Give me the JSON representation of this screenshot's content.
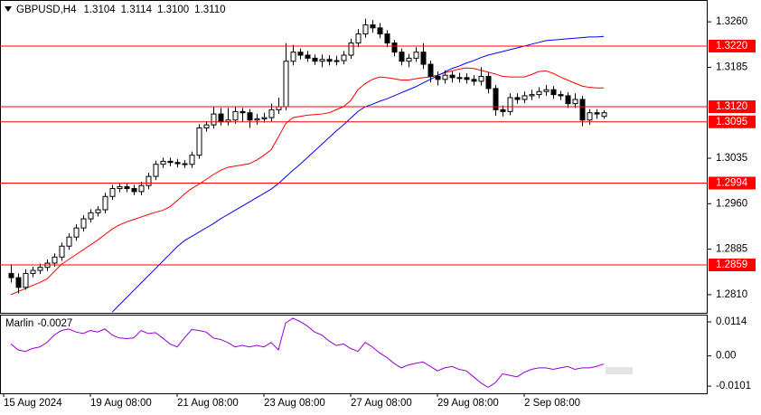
{
  "chart_data": {
    "type": "candlestick",
    "symbol": "GBPUSD,H4",
    "header_values": [
      1.3104,
      1.3114,
      1.31,
      1.311
    ],
    "header_value_labels": [
      "1.3104",
      "1.3114",
      "1.3100",
      "1.3110"
    ],
    "categories": [
      "15 Aug 2024",
      null,
      null,
      null,
      null,
      null,
      null,
      null,
      null,
      null,
      null,
      "19 Aug 08:00",
      null,
      null,
      null,
      null,
      null,
      null,
      null,
      null,
      null,
      null,
      null,
      "21 Aug 08:00",
      null,
      null,
      null,
      null,
      null,
      null,
      null,
      null,
      null,
      null,
      null,
      "23 Aug 08:00",
      null,
      null,
      null,
      null,
      null,
      null,
      null,
      null,
      null,
      null,
      null,
      "27 Aug 08:00",
      null,
      null,
      null,
      null,
      null,
      null,
      null,
      null,
      null,
      null,
      null,
      "29 Aug 08:00",
      null,
      null,
      null,
      null,
      null,
      null,
      null,
      null,
      null,
      null,
      null,
      "2 Sep 08:00",
      null,
      null,
      null,
      null,
      null,
      null,
      null,
      null,
      null,
      null,
      null
    ],
    "open": [
      1.2845,
      1.2838,
      1.2822,
      1.2845,
      1.285,
      1.2855,
      1.2862,
      1.2872,
      1.289,
      1.2905,
      1.292,
      1.2935,
      1.2945,
      1.295,
      1.2972,
      1.2985,
      1.2988,
      1.2985,
      1.298,
      1.299,
      1.3005,
      1.3025,
      1.303,
      1.3028,
      1.3026,
      1.3025,
      1.304,
      1.3085,
      1.309,
      1.3108,
      1.3095,
      1.3098,
      1.3112,
      1.311,
      1.3098,
      1.31,
      1.3102,
      1.3115,
      1.312,
      1.3195,
      1.321,
      1.3205,
      1.32,
      1.3195,
      1.3198,
      1.3195,
      1.3196,
      1.3205,
      1.3225,
      1.324,
      1.3255,
      1.325,
      1.324,
      1.3225,
      1.321,
      1.3195,
      1.32,
      1.321,
      1.319,
      1.317,
      1.3165,
      1.3172,
      1.3168,
      1.3168,
      1.3165,
      1.3162,
      1.317,
      1.315,
      1.3115,
      1.3112,
      1.3135,
      1.3132,
      1.3138,
      1.314,
      1.3145,
      1.3148,
      1.314,
      1.3138,
      1.3125,
      1.3132,
      1.3098,
      1.311,
      1.3104
    ],
    "high": [
      1.286,
      1.2845,
      1.2852,
      1.2856,
      1.2861,
      1.2868,
      1.2878,
      1.2896,
      1.2911,
      1.2926,
      1.2941,
      1.2951,
      1.2956,
      1.2978,
      1.2991,
      1.2994,
      1.2994,
      1.2991,
      1.2996,
      1.3011,
      1.3031,
      1.3036,
      1.3036,
      1.3034,
      1.3032,
      1.3046,
      1.3091,
      1.3096,
      1.312,
      1.3118,
      1.3118,
      1.312,
      1.3118,
      1.3116,
      1.3108,
      1.311,
      1.3125,
      1.3135,
      1.3225,
      1.3222,
      1.3216,
      1.3212,
      1.3206,
      1.3206,
      1.3205,
      1.3204,
      1.3212,
      1.3232,
      1.3248,
      1.3265,
      1.3263,
      1.3258,
      1.3246,
      1.323,
      1.3216,
      1.3207,
      1.3218,
      1.3225,
      1.3196,
      1.3178,
      1.318,
      1.3178,
      1.3176,
      1.3175,
      1.3172,
      1.3185,
      1.3176,
      1.3156,
      1.3122,
      1.3142,
      1.3142,
      1.3145,
      1.3148,
      1.3152,
      1.3156,
      1.3154,
      1.3146,
      1.3144,
      1.3142,
      1.3138,
      1.3116,
      1.3116,
      1.3114
    ],
    "low": [
      1.283,
      1.2812,
      1.2818,
      1.2839,
      1.2844,
      1.2849,
      1.2856,
      1.2866,
      1.2884,
      1.2899,
      1.2914,
      1.2929,
      1.2939,
      1.2944,
      1.2966,
      1.2979,
      1.2979,
      1.2974,
      1.2974,
      1.2984,
      1.2999,
      1.3019,
      1.3022,
      1.302,
      1.3019,
      1.3019,
      1.3034,
      1.3079,
      1.3084,
      1.3089,
      1.3089,
      1.3092,
      1.3095,
      1.3085,
      1.309,
      1.3094,
      1.3096,
      1.3108,
      1.3114,
      1.3188,
      1.3198,
      1.3194,
      1.3189,
      1.3185,
      1.3188,
      1.3188,
      1.319,
      1.3199,
      1.3218,
      1.3234,
      1.3242,
      1.3233,
      1.3218,
      1.3203,
      1.3188,
      1.3185,
      1.3194,
      1.3182,
      1.316,
      1.3155,
      1.3158,
      1.316,
      1.316,
      1.3158,
      1.3155,
      1.3155,
      1.3142,
      1.3105,
      1.3104,
      1.3106,
      1.3125,
      1.3126,
      1.3131,
      1.3134,
      1.3138,
      1.3133,
      1.3131,
      1.3118,
      1.3118,
      1.3088,
      1.309,
      1.31,
      1.31
    ],
    "close": [
      1.2838,
      1.2822,
      1.2845,
      1.285,
      1.2855,
      1.2862,
      1.2872,
      1.289,
      1.2905,
      1.292,
      1.2935,
      1.2945,
      1.295,
      1.2972,
      1.2985,
      1.2988,
      1.2985,
      1.298,
      1.299,
      1.3005,
      1.3025,
      1.303,
      1.3028,
      1.3026,
      1.3025,
      1.304,
      1.3085,
      1.309,
      1.3108,
      1.3095,
      1.3098,
      1.3112,
      1.311,
      1.3098,
      1.31,
      1.3102,
      1.3115,
      1.312,
      1.3195,
      1.321,
      1.3205,
      1.32,
      1.3195,
      1.3198,
      1.3195,
      1.3196,
      1.3205,
      1.3225,
      1.324,
      1.3255,
      1.325,
      1.324,
      1.3225,
      1.321,
      1.3195,
      1.32,
      1.321,
      1.319,
      1.317,
      1.3165,
      1.3172,
      1.3168,
      1.3168,
      1.3165,
      1.3162,
      1.317,
      1.315,
      1.3115,
      1.3112,
      1.3135,
      1.3132,
      1.3138,
      1.314,
      1.3145,
      1.3148,
      1.314,
      1.3138,
      1.3125,
      1.3132,
      1.3098,
      1.311,
      1.3108,
      1.311
    ],
    "lines": [
      {
        "color": "#ff0000",
        "values": [
          1.281,
          1.2815,
          1.282,
          1.2825,
          1.283,
          1.2836,
          1.2848,
          1.286,
          1.2868,
          1.2876,
          1.2884,
          1.2892,
          1.29,
          1.2909,
          1.2918,
          1.2925,
          1.293,
          1.2934,
          1.2938,
          1.2942,
          1.2946,
          1.2949,
          1.2955,
          1.2965,
          1.2976,
          1.2985,
          1.2992,
          1.3,
          1.3008,
          1.3015,
          1.302,
          1.3022,
          1.3024,
          1.3026,
          1.3032,
          1.304,
          1.3049,
          1.307,
          1.3092,
          1.3102,
          1.3104,
          1.3106,
          1.3107,
          1.3108,
          1.311,
          1.3115,
          1.312,
          1.313,
          1.3148,
          1.3158,
          1.3165,
          1.3169,
          1.3168,
          1.3166,
          1.3164,
          1.3164,
          1.3166,
          1.3168,
          1.3169,
          1.3172,
          1.3176,
          1.3179,
          1.3182,
          1.3184,
          1.3183,
          1.318,
          1.3177,
          1.3174,
          1.317,
          1.3169,
          1.3169,
          1.3169,
          1.3173,
          1.3178,
          1.3179,
          1.3175,
          1.3169,
          1.3164,
          1.3159,
          1.3154,
          1.3152,
          1.3151,
          1.3151
        ]
      },
      {
        "color": "#0000ff",
        "values": [
          null,
          null,
          null,
          null,
          null,
          null,
          null,
          null,
          null,
          null,
          null,
          null,
          null,
          null,
          1.2781,
          1.2793,
          1.2805,
          1.2817,
          1.2829,
          1.2841,
          1.2853,
          1.2865,
          1.2877,
          1.2889,
          1.2899,
          1.2906,
          1.2913,
          1.292,
          1.2927,
          1.2935,
          1.2942,
          1.2949,
          1.2956,
          1.2963,
          1.297,
          1.2977,
          1.2984,
          1.2993,
          1.3004,
          1.3015,
          1.3025,
          1.3036,
          1.3047,
          1.3058,
          1.3069,
          1.308,
          1.309,
          1.3101,
          1.3112,
          1.312,
          1.3124,
          1.3129,
          1.3133,
          1.3138,
          1.3143,
          1.3148,
          1.3153,
          1.3159,
          1.3165,
          1.3171,
          1.3177,
          1.3183,
          1.3187,
          1.3192,
          1.3196,
          1.3201,
          1.3205,
          1.3208,
          1.3211,
          1.3214,
          1.3217,
          1.322,
          1.3223,
          1.3226,
          1.3229,
          1.323,
          1.3231,
          1.3232,
          1.3233,
          1.3234,
          1.3235,
          1.3235,
          1.3236
        ]
      }
    ],
    "ylim": [
      1.278,
      1.3296
    ],
    "yticks": [
      {
        "value": 1.326,
        "label": "1.3260"
      },
      1.3185,
      1.3035,
      {
        "value": 1.296,
        "label": "1.2960"
      },
      1.2885,
      {
        "value": 1.281,
        "label": "1.2810"
      }
    ],
    "levels": [
      {
        "value": 1.322,
        "label": "1.3220"
      },
      {
        "value": 1.312,
        "label": "1.3120"
      },
      1.3095,
      1.2994,
      1.2859
    ],
    "level_color": "#ff0000",
    "indicator": {
      "name": "Marlin",
      "color": "#9400d3",
      "values": [
        0.004,
        0.002,
        0.0015,
        0.0025,
        0.003,
        0.0045,
        0.007,
        0.0085,
        0.009,
        0.008,
        0.0075,
        0.0085,
        0.008,
        0.009,
        0.007,
        0.006,
        0.0058,
        0.006,
        0.0085,
        0.0075,
        0.0078,
        0.006,
        0.004,
        0.003,
        0.006,
        0.0088,
        0.0085,
        0.008,
        0.006,
        0.0055,
        0.0045,
        0.003,
        0.0035,
        0.003,
        0.0035,
        0.003,
        0.0045,
        0.002,
        0.011,
        0.0126,
        0.0115,
        0.01,
        0.008,
        0.007,
        0.005,
        0.0035,
        0.004,
        0.0025,
        0.0015,
        0.0045,
        0.003,
        0.001,
        -0.0005,
        -0.0025,
        -0.004,
        -0.003,
        -0.0025,
        -0.002,
        -0.0035,
        -0.005,
        -0.004,
        -0.0035,
        -0.0045,
        -0.005,
        -0.007,
        -0.009,
        -0.0105,
        -0.009,
        -0.006,
        -0.0065,
        -0.007,
        -0.0055,
        -0.0045,
        -0.004,
        -0.004,
        -0.0045,
        -0.004,
        -0.0035,
        -0.0045,
        -0.004,
        -0.004,
        -0.0035,
        -0.0027
      ],
      "ylim": [
        -0.0125,
        0.0138
      ],
      "yticks": [
        0.0114,
        {
          "value": 0,
          "label": "0.00"
        },
        -0.0101
      ]
    }
  }
}
